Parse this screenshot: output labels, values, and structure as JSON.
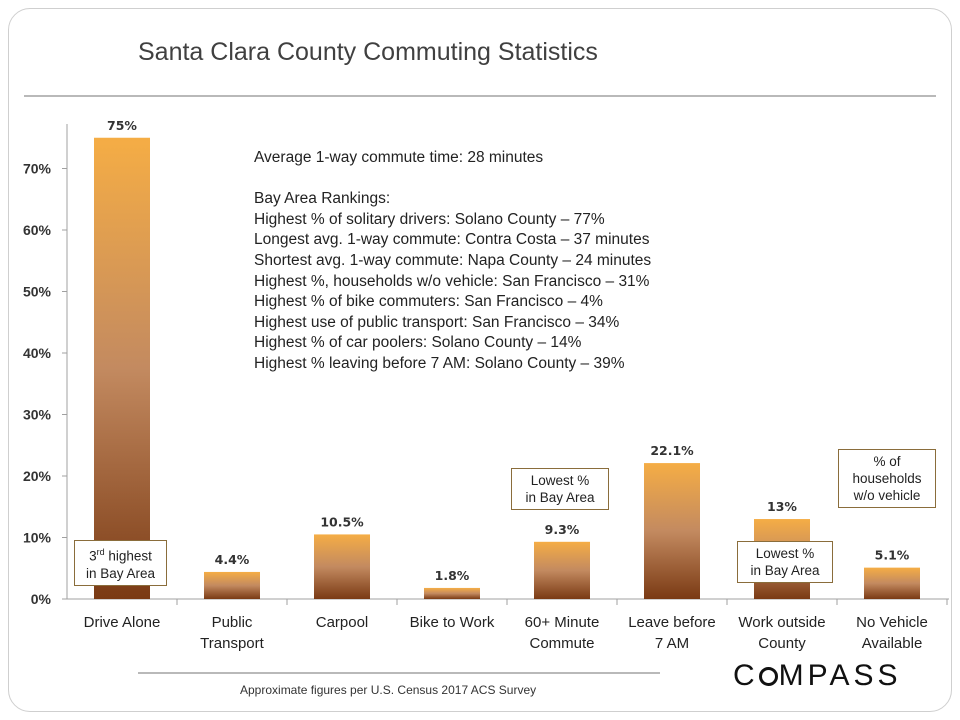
{
  "title": "Santa Clara County Commuting Statistics",
  "source_note": "Approximate figures per U.S. Census 2017 ACS Survey",
  "logo_text": "COMPASS",
  "annotation_lines": [
    "Average 1-way commute time: 28 minutes",
    "",
    "Bay Area Rankings:",
    "Highest % of solitary drivers: Solano County – 77%",
    "Longest avg. 1-way commute: Contra Costa – 37 minutes",
    "Shortest avg. 1-way commute: Napa County – 24 minutes",
    "Highest %, households w/o vehicle: San Francisco – 31%",
    "Highest % of bike commuters: San Francisco – 4%",
    "Highest use of public transport: San Francisco – 34%",
    "Highest % of car poolers: Solano County – 14%",
    "Highest % leaving before 7 AM: Solano County – 39%"
  ],
  "callouts": {
    "drive_alone": {
      "line1_main": "3",
      "line1_sup": "rd",
      "line1_rest": " highest",
      "line2": "in Bay Area"
    },
    "commute_60": {
      "line1": "Lowest %",
      "line2": "in Bay Area"
    },
    "work_outside": {
      "line1": "Lowest %",
      "line2": "in Bay Area"
    },
    "no_vehicle": {
      "line1": "% of",
      "line2": "households",
      "line3": "w/o vehicle"
    }
  },
  "colors": {
    "bar_top": "#f5ad45",
    "bar_mid": "#c38a60",
    "bar_bottom": "#7a3a14",
    "axis": "#a0a0a0"
  },
  "chart_data": {
    "type": "bar",
    "title": "Santa Clara County Commuting Statistics",
    "categories": [
      [
        "Drive Alone"
      ],
      [
        "Public",
        "Transport"
      ],
      [
        "Carpool"
      ],
      [
        "Bike to Work"
      ],
      [
        "60+ Minute",
        "Commute"
      ],
      [
        "Leave before",
        "7 AM"
      ],
      [
        "Work outside",
        "County"
      ],
      [
        "No Vehicle",
        "Available"
      ]
    ],
    "values": [
      75,
      4.4,
      10.5,
      1.8,
      9.3,
      22.1,
      13,
      5.1
    ],
    "value_labels": [
      "75%",
      "4.4%",
      "10.5%",
      "1.8%",
      "9.3%",
      "22.1%",
      "13%",
      "5.1%"
    ],
    "yticks": [
      0,
      10,
      20,
      30,
      40,
      50,
      60,
      70
    ],
    "ytick_labels": [
      "0%",
      "10%",
      "20%",
      "30%",
      "40%",
      "50%",
      "60%",
      "70%"
    ],
    "ylim": [
      0,
      77
    ],
    "grid": false,
    "legend": "none"
  }
}
